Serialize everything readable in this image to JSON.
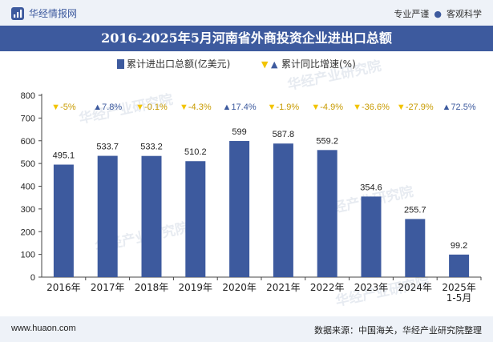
{
  "brand": {
    "name": "华经情报网"
  },
  "tags": [
    "专业严谨",
    "客观科学"
  ],
  "title": "2016-2025年5月河南省外商投资企业进出口总额",
  "legend": {
    "bar_label": "累计进出口总额(亿美元)",
    "growth_label": "累计同比增速(%)"
  },
  "footer": {
    "website": "www.huaon.com",
    "source": "数据来源：中国海关，华经产业研究院整理"
  },
  "watermark": {
    "text": "华经产业研究院",
    "url": "www.huaon.com"
  },
  "colors": {
    "bar": "#3d5a9e",
    "up": "#3d5a9e",
    "down": "#f2c400",
    "header_band": "#3d5a9e",
    "top_band": "#eef2f8"
  },
  "chart_data": {
    "type": "bar",
    "title": "2016-2025年5月河南省外商投资企业进出口总额",
    "categories": [
      "2016年",
      "2017年",
      "2018年",
      "2019年",
      "2020年",
      "2021年",
      "2022年",
      "2023年",
      "2024年",
      "2025年\n1-5月"
    ],
    "series": [
      {
        "name": "累计进出口总额(亿美元)",
        "values": [
          495.1,
          533.7,
          533.2,
          510.2,
          599,
          587.8,
          559.2,
          354.6,
          255.7,
          99.2
        ],
        "data_labels": [
          "495.1",
          "533.7",
          "533.2",
          "510.2",
          "599",
          "587.8",
          "559.2",
          "354.6",
          "255.7",
          "99.2"
        ]
      },
      {
        "name": "累计同比增速(%)",
        "values": [
          -5,
          7.8,
          -0.1,
          -4.3,
          17.4,
          -1.9,
          -4.9,
          -36.6,
          -27.9,
          72.5
        ],
        "labels": [
          "-5%",
          "7.8%",
          "-0.1%",
          "-4.3%",
          "17.4%",
          "-1.9%",
          "-4.9%",
          "-36.6%",
          "-27.9%",
          "72.5%"
        ]
      }
    ],
    "ylim": [
      0,
      800
    ],
    "yticks": [
      0,
      100,
      200,
      300,
      400,
      500,
      600,
      700,
      800
    ],
    "grid": false,
    "legend_position": "top"
  }
}
